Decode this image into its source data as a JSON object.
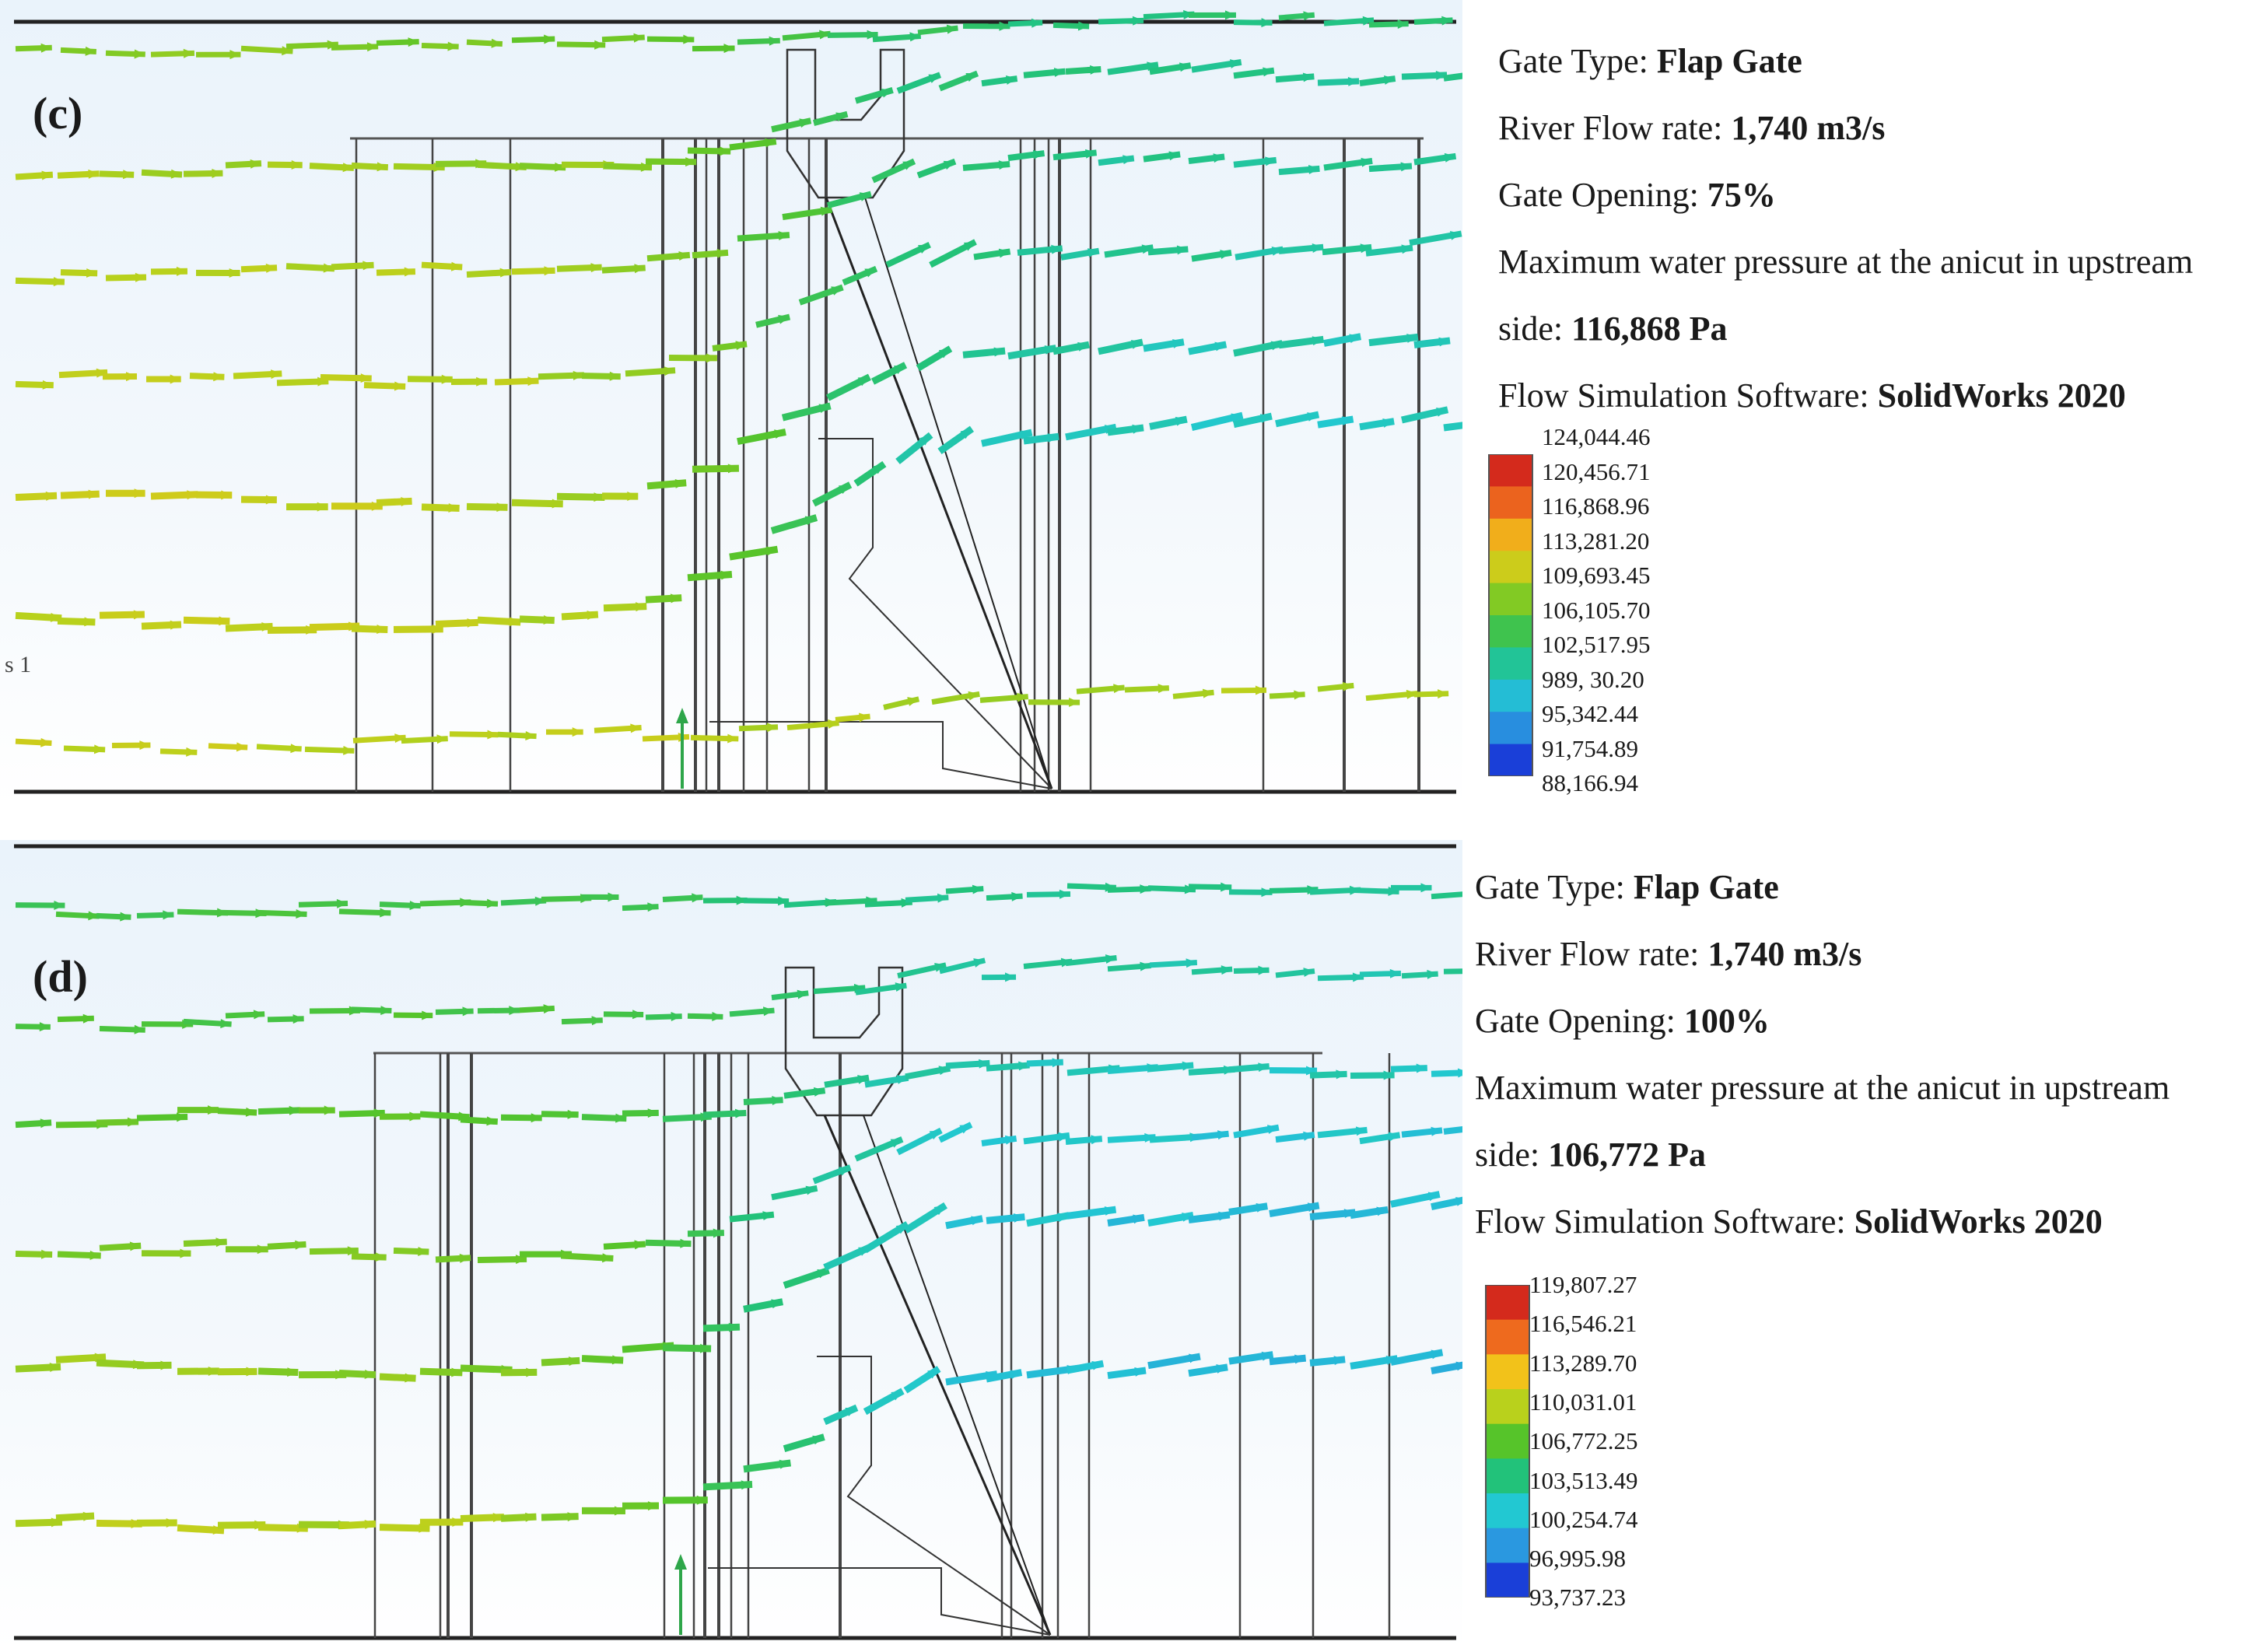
{
  "panels": [
    {
      "label": "(c)",
      "info": {
        "gate_type_label": "Gate Type:",
        "gate_type_value": "Flap Gate",
        "flow_label": "River Flow rate:",
        "flow_value": "1,740 m3/s",
        "opening_label": "Gate Opening:",
        "opening_value": "75%",
        "pressure_label_1": "Maximum water pressure at the anicut in upstream",
        "pressure_label_2": "side:",
        "pressure_value": "116,868 Pa",
        "software_label": "Flow Simulation Software:",
        "software_value": "SolidWorks 2020"
      },
      "legend_ticks": [
        "124,044.46",
        "120,456.71",
        "116,868.96",
        "113,281.20",
        "109,693.45",
        "106,105.70",
        "102,517.95",
        "989, 30.20",
        "95,342.44",
        "91,754.89",
        "88,166.94"
      ],
      "side_mark": "s 1"
    },
    {
      "label": "(d)",
      "info": {
        "gate_type_label": "Gate Type:",
        "gate_type_value": "Flap Gate",
        "flow_label": "River Flow rate:",
        "flow_value": "1,740 m3/s",
        "opening_label": "Gate Opening:",
        "opening_value": "100%",
        "pressure_label_1": "Maximum water pressure at the anicut in upstream",
        "pressure_label_2": "side:",
        "pressure_value": "106,772 Pa",
        "software_label": "Flow Simulation Software:",
        "software_value": "SolidWorks 2020"
      },
      "legend_ticks": [
        "119,807.27",
        "116,546.21",
        "113,289.70",
        "110,031.01",
        "106,772.25",
        "103,513.49",
        "100,254.74",
        "96,995.98",
        "93,737.23"
      ]
    }
  ],
  "colors": {
    "scale": [
      "#d42a1c",
      "#ee6a1e",
      "#f2c21a",
      "#b9d11c",
      "#56c42a",
      "#22c27a",
      "#22c8d2",
      "#2a98e0",
      "#1a3fd8"
    ],
    "frame": "#222222"
  }
}
